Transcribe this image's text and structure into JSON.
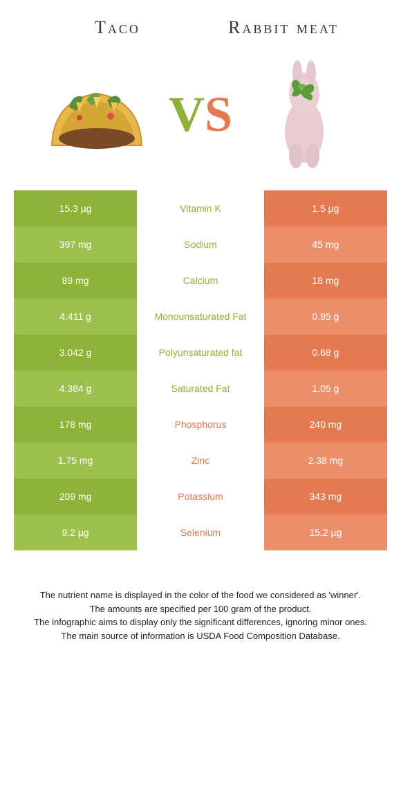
{
  "header": {
    "left_title": "Taco",
    "right_title": "Rabbit meat",
    "vs_v": "V",
    "vs_s": "S"
  },
  "colors": {
    "green": "#8db237",
    "green_light": "#9ec04f",
    "orange": "#e57a51",
    "orange_light": "#eb8f6a",
    "white": "#ffffff"
  },
  "table": {
    "rows": [
      {
        "left": "15.3 µg",
        "nutrient": "Vitamin K",
        "right": "1.5 µg",
        "winner": "left"
      },
      {
        "left": "397 mg",
        "nutrient": "Sodium",
        "right": "45 mg",
        "winner": "left"
      },
      {
        "left": "89 mg",
        "nutrient": "Calcium",
        "right": "18 mg",
        "winner": "left"
      },
      {
        "left": "4.411 g",
        "nutrient": "Monounsaturated Fat",
        "right": "0.95 g",
        "winner": "left"
      },
      {
        "left": "3.042 g",
        "nutrient": "Polyunsaturated fat",
        "right": "0.68 g",
        "winner": "left"
      },
      {
        "left": "4.384 g",
        "nutrient": "Saturated Fat",
        "right": "1.05 g",
        "winner": "left"
      },
      {
        "left": "178 mg",
        "nutrient": "Phosphorus",
        "right": "240 mg",
        "winner": "right"
      },
      {
        "left": "1.75 mg",
        "nutrient": "Zinc",
        "right": "2.38 mg",
        "winner": "right"
      },
      {
        "left": "209 mg",
        "nutrient": "Potassium",
        "right": "343 mg",
        "winner": "right"
      },
      {
        "left": "9.2 µg",
        "nutrient": "Selenium",
        "right": "15.2 µg",
        "winner": "right"
      }
    ]
  },
  "footer": {
    "line1": "The nutrient name is displayed in the color of the food we considered as 'winner'.",
    "line2": "The amounts are specified per 100 gram of the product.",
    "line3": "The infographic aims to display only the significant differences, ignoring minor ones.",
    "line4": "The main source of information is USDA Food Composition Database."
  }
}
